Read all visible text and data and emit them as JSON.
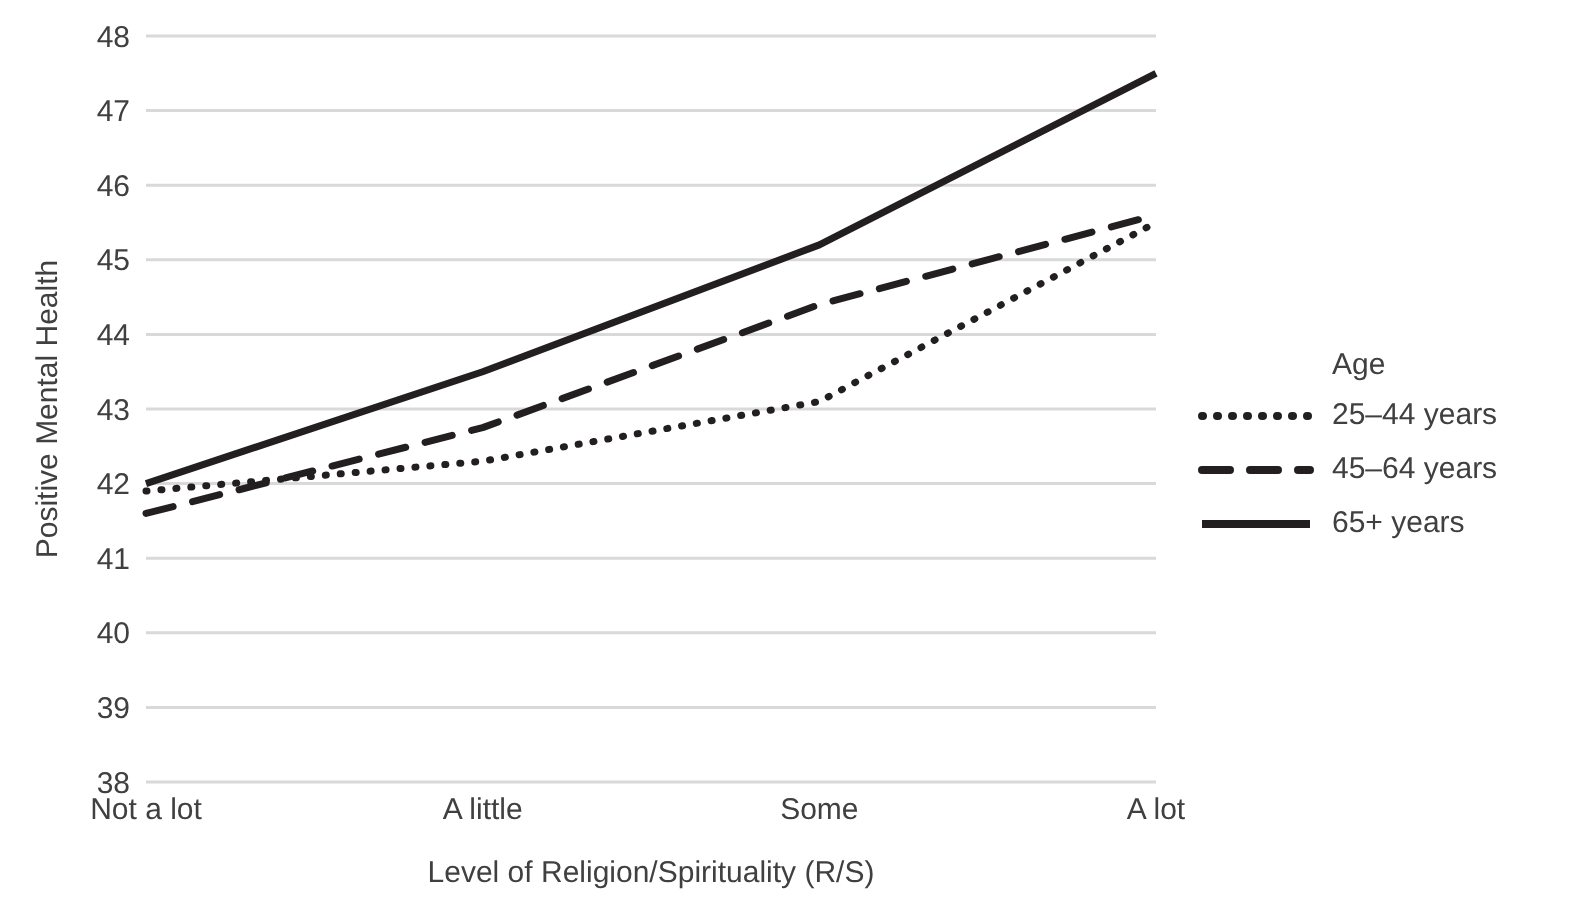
{
  "chart_data": {
    "type": "line",
    "xlabel": "Level of Religion/Spirituality (R/S)",
    "ylabel": "Positive Mental Health",
    "legend_title": "Age",
    "categories": [
      "Not a lot",
      "A little",
      "Some",
      "A lot"
    ],
    "series": [
      {
        "name": "25–44 years",
        "color": "#231f20",
        "line_style": "dotted",
        "values": [
          41.9,
          42.3,
          43.1,
          45.5
        ]
      },
      {
        "name": "45–64 years",
        "color": "#231f20",
        "line_style": "dashed",
        "values": [
          41.6,
          42.75,
          44.4,
          45.6
        ]
      },
      {
        "name": "65+ years",
        "color": "#231f20",
        "line_style": "solid",
        "values": [
          42.0,
          43.5,
          45.2,
          47.5
        ]
      }
    ],
    "ylim": [
      38,
      48
    ],
    "yticks": [
      38,
      39,
      40,
      41,
      42,
      43,
      44,
      45,
      46,
      47,
      48
    ],
    "grid": "y",
    "legend": "right",
    "marker": "none"
  }
}
